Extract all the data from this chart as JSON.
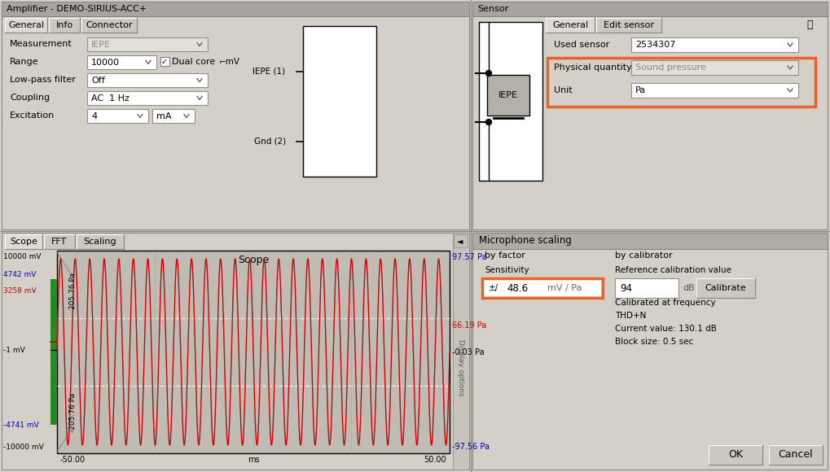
{
  "bg_color": "#d4d0c8",
  "panel_bg": "#d4d0c8",
  "white": "#ffffff",
  "title_bar_color": "#a8a8a8",
  "orange_border": "#e8622a",
  "text_dark": "#000000",
  "text_blue": "#0000cc",
  "text_red": "#cc0000",
  "top_left_title": "Amplifier - DEMO-SIRIUS-ACC+",
  "top_right_title": "Sensor",
  "amp_tabs": [
    "General",
    "Info",
    "Connector"
  ],
  "amp_fields": [
    [
      "Measurement",
      "IEPE",
      false
    ],
    [
      "Range",
      "10000",
      true
    ],
    [
      "Low-pass filter",
      "Off",
      true
    ],
    [
      "Coupling",
      "AC  1 Hz",
      true
    ],
    [
      "Excitation",
      "4",
      true
    ]
  ],
  "sensor_tabs": [
    "General",
    "Edit sensor"
  ],
  "sensor_fields": [
    [
      "Used sensor",
      "2534307",
      true
    ],
    [
      "Physical quantity",
      "Sound pressure",
      false
    ],
    [
      "Unit",
      "Pa",
      true
    ]
  ],
  "scope_tabs": [
    "Scope",
    "FFT",
    "Scaling"
  ],
  "scope_title": "Scope",
  "mic_title": "Microphone scaling",
  "by_factor": "by factor",
  "by_calibrator": "by calibrator",
  "sensitivity_label": "Sensitivity",
  "sensitivity_value": "48.6",
  "sensitivity_unit": "mV / Pa",
  "ref_cal_label": "Reference calibration value",
  "ref_cal_value": "94",
  "ref_cal_unit": "dB",
  "calibrate_btn": "Calibrate",
  "cal_freq_label": "Calibrated at frequency",
  "thd_label": "THD+N",
  "current_val_label": "Current value: 130.1 dB",
  "block_size_label": "Block size: 0.5 sec",
  "ok_btn": "OK",
  "cancel_btn": "Cancel"
}
